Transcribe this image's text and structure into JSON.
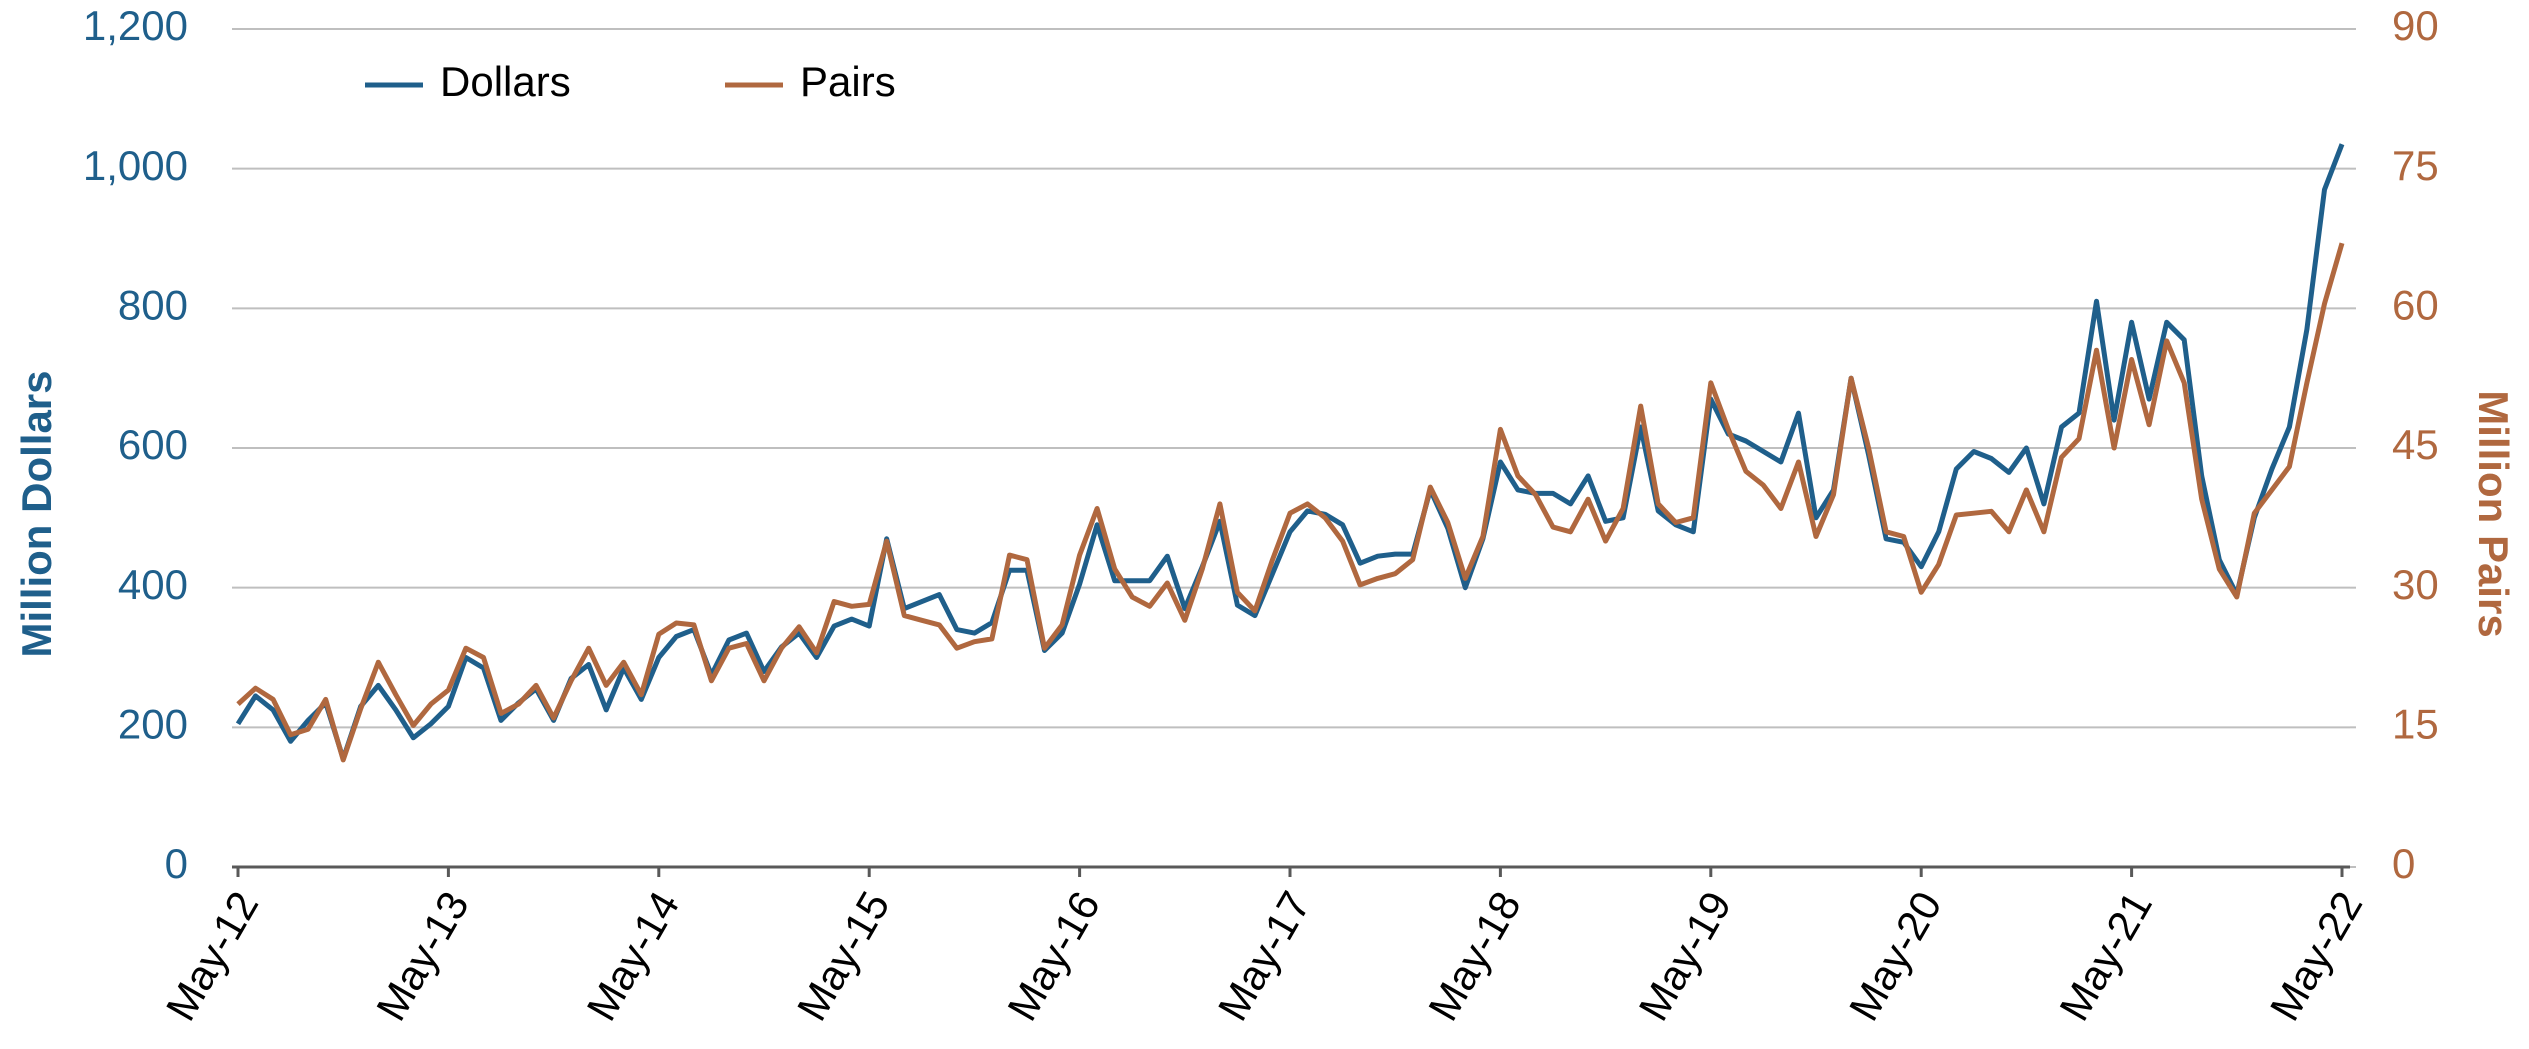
{
  "chart_data": {
    "type": "line",
    "ylabel": "Million Dollars",
    "y2label": "Million Pairs",
    "categories": [
      "May-12",
      null,
      null,
      null,
      null,
      null,
      null,
      null,
      null,
      null,
      null,
      null,
      "May-13",
      null,
      null,
      null,
      null,
      null,
      null,
      null,
      null,
      null,
      null,
      null,
      "May-14",
      null,
      null,
      null,
      null,
      null,
      null,
      null,
      null,
      null,
      null,
      null,
      "May-15",
      null,
      null,
      null,
      null,
      null,
      null,
      null,
      null,
      null,
      null,
      null,
      "May-16",
      null,
      null,
      null,
      null,
      null,
      null,
      null,
      null,
      null,
      null,
      null,
      "May-17",
      null,
      null,
      null,
      null,
      null,
      null,
      null,
      null,
      null,
      null,
      null,
      "May-18",
      null,
      null,
      null,
      null,
      null,
      null,
      null,
      null,
      null,
      null,
      null,
      "May-19",
      null,
      null,
      null,
      null,
      null,
      null,
      null,
      null,
      null,
      null,
      null,
      "May-20",
      null,
      null,
      null,
      null,
      null,
      null,
      null,
      null,
      null,
      null,
      null,
      "May-21",
      null,
      null,
      null,
      null,
      null,
      null,
      null,
      null,
      null,
      null,
      null,
      "May-22"
    ],
    "series": [
      {
        "name": "Dollars",
        "color": "#1f5f8b",
        "axis": "y",
        "values": [
          205,
          245,
          225,
          180,
          210,
          235,
          155,
          230,
          260,
          225,
          185,
          205,
          230,
          300,
          285,
          210,
          235,
          255,
          210,
          270,
          290,
          225,
          285,
          240,
          300,
          330,
          340,
          275,
          325,
          335,
          280,
          315,
          335,
          300,
          345,
          355,
          345,
          470,
          370,
          380,
          390,
          340,
          335,
          350,
          425,
          425,
          310,
          335,
          405,
          490,
          410,
          410,
          410,
          445,
          370,
          430,
          495,
          375,
          360,
          420,
          480,
          510,
          505,
          490,
          435,
          445,
          448,
          448,
          540,
          485,
          400,
          470,
          580,
          540,
          535,
          535,
          520,
          560,
          495,
          500,
          630,
          510,
          490,
          480,
          670,
          620,
          610,
          595,
          580,
          650,
          500,
          540,
          700,
          590,
          470,
          465,
          430,
          480,
          570,
          595,
          585,
          565,
          600,
          520,
          630,
          650,
          810,
          640,
          780,
          670,
          780,
          755,
          560,
          440,
          390,
          500,
          570,
          630,
          770,
          970,
          1035
        ]
      },
      {
        "name": "Pairs",
        "color": "#b0683f",
        "axis": "y2",
        "values": [
          17.5,
          19.2,
          18,
          14.2,
          14.8,
          18,
          11.5,
          17,
          22,
          18.5,
          15.2,
          17.5,
          19,
          23.5,
          22.5,
          16.5,
          17.5,
          19.5,
          16,
          20,
          23.5,
          19.5,
          22,
          18.5,
          25,
          26.2,
          26,
          20,
          23.5,
          24,
          20,
          23.5,
          25.8,
          23,
          28.5,
          28,
          28.2,
          35,
          27,
          26.5,
          26,
          23.5,
          24.2,
          24.5,
          33.5,
          33,
          23.5,
          26,
          33.5,
          38.5,
          32,
          29,
          28,
          30.5,
          26.5,
          32,
          39,
          29.5,
          27.5,
          33,
          38,
          39,
          37.5,
          35,
          30.3,
          31,
          31.5,
          33,
          40.8,
          37,
          31,
          35.5,
          47,
          42,
          40,
          36.5,
          36,
          39.5,
          35,
          38.5,
          49.5,
          39,
          37,
          37.5,
          52,
          47,
          42.5,
          41,
          38.5,
          43.5,
          35.5,
          40,
          52.5,
          45,
          36,
          35.5,
          29.5,
          32.5,
          37.8,
          38,
          38.2,
          36,
          40.5,
          36,
          44,
          46,
          55.5,
          45,
          54.5,
          47.5,
          56.5,
          52,
          39.5,
          32,
          29,
          38,
          40.5,
          43,
          52,
          60.5,
          67
        ]
      }
    ],
    "ylim": [
      0,
      1200
    ],
    "yticks": [
      0,
      200,
      400,
      600,
      800,
      {
        "value": 1000,
        "label": "1,000"
      },
      {
        "value": 1200,
        "label": "1,200"
      }
    ],
    "y2lim": [
      0,
      90
    ],
    "y2ticks": [
      0,
      15,
      30,
      45,
      60,
      75,
      90
    ],
    "grid": true,
    "legend": "upper left"
  }
}
